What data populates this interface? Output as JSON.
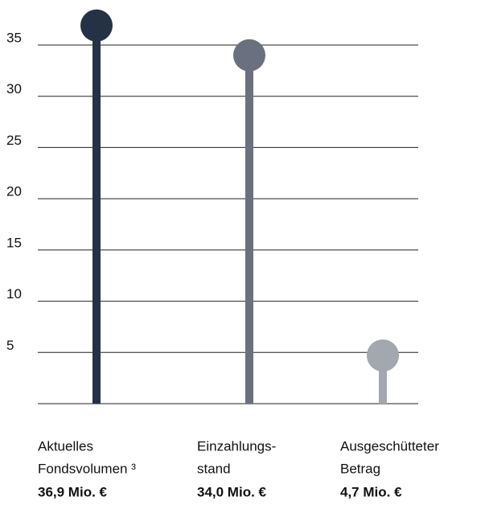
{
  "chart_data": {
    "type": "lollipop",
    "categories": [
      [
        "Aktuelles",
        "Fondsvolumen ³"
      ],
      [
        "Einzahlungs-",
        "stand"
      ],
      [
        "Ausgeschütteter",
        "Betrag"
      ]
    ],
    "values": [
      36.9,
      34.0,
      4.7
    ],
    "value_labels": [
      "36,9 Mio. €",
      "34,0 Mio. €",
      "4,7 Mio. €"
    ],
    "colors": [
      "#253245",
      "#6b7080",
      "#a3a7b0"
    ],
    "ylim": [
      0,
      39
    ],
    "yticks": [
      5,
      10,
      15,
      20,
      25,
      30,
      35
    ],
    "grid": true
  }
}
